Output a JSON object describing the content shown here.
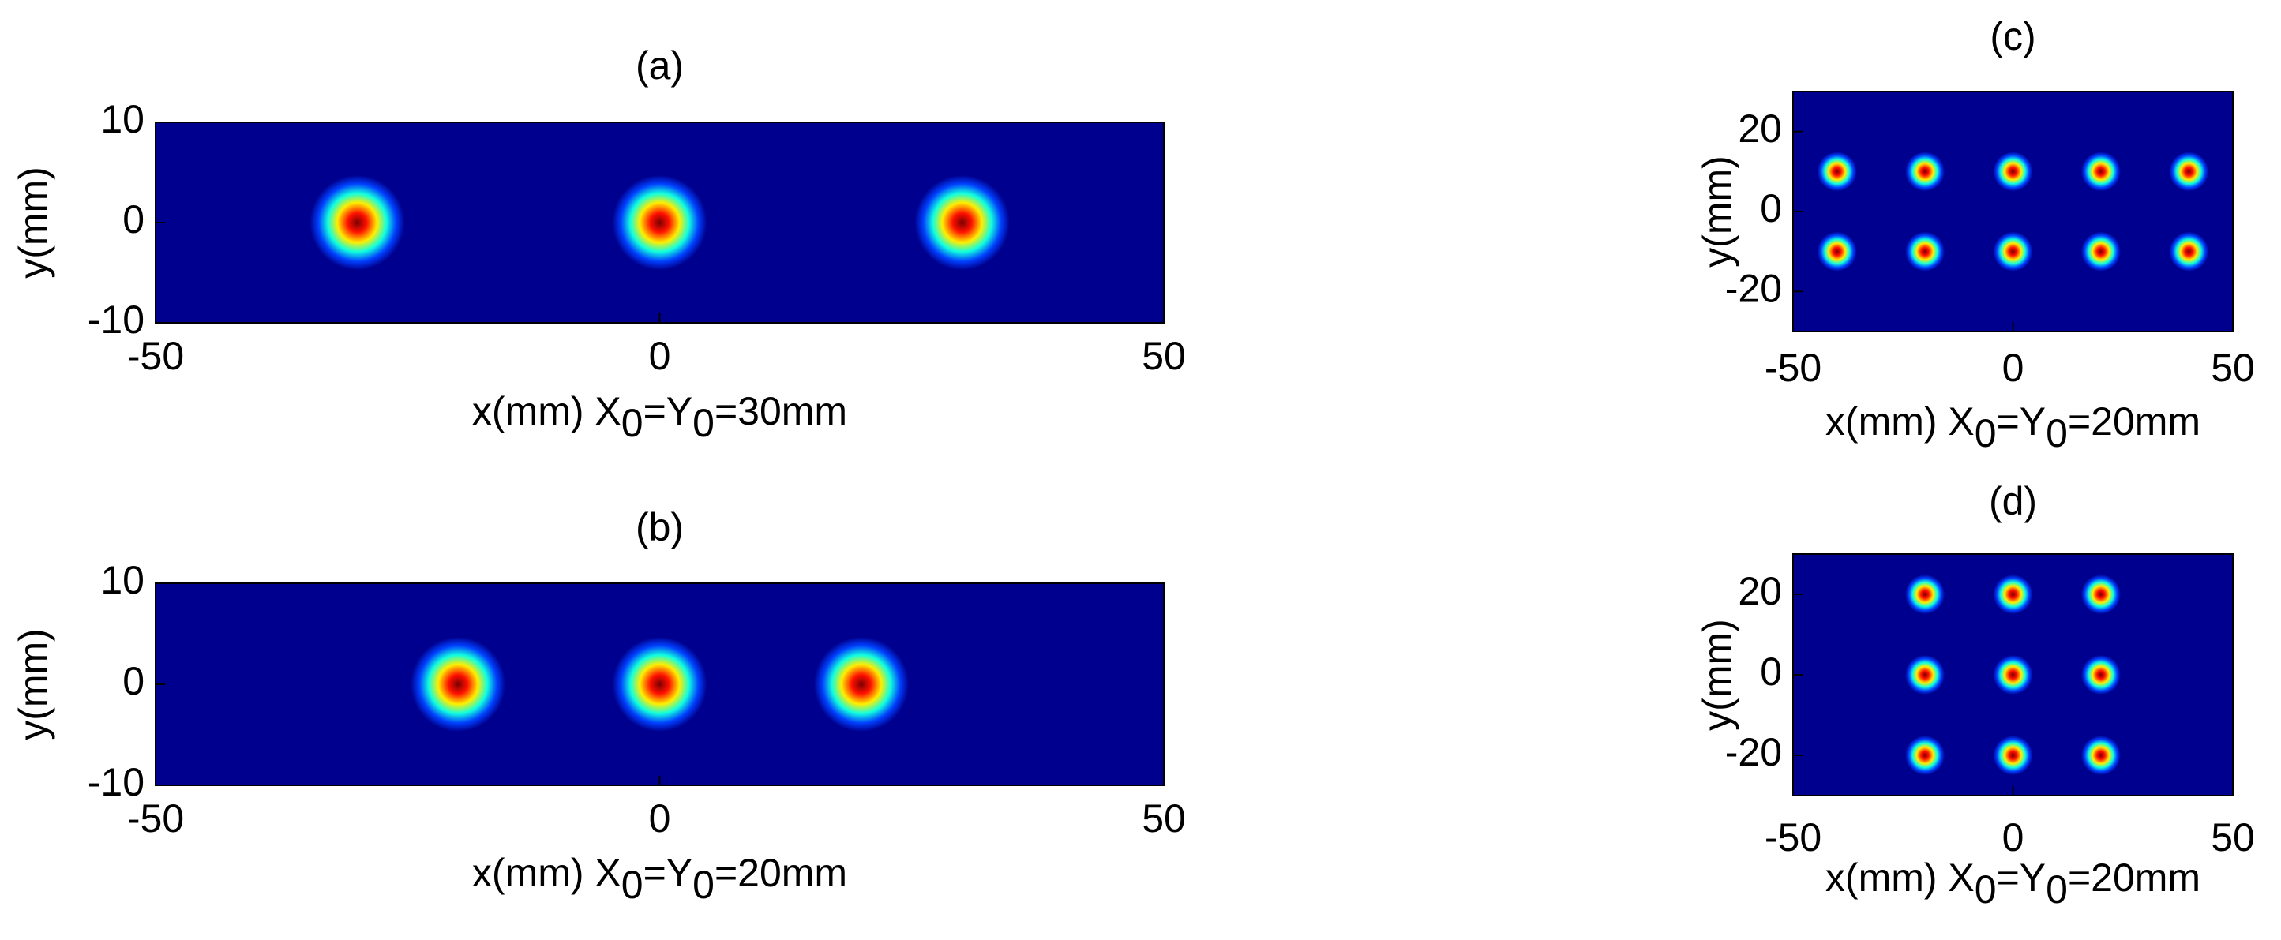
{
  "chart_data": [
    {
      "type": "scatter",
      "title": "(a)",
      "ylabel": "y(mm)",
      "xlabel": [
        "x(mm)  X",
        "0",
        "=Y",
        "0",
        "=30mm"
      ],
      "x": [
        -30,
        0,
        30
      ],
      "y": [
        0,
        0,
        0
      ],
      "xlim": [
        -50,
        50
      ],
      "xticks": [
        -50,
        0,
        50
      ],
      "ylim": [
        -10,
        10
      ],
      "yticks": [
        -10,
        0,
        10
      ],
      "background": "#00008f"
    },
    {
      "type": "scatter",
      "title": "(b)",
      "ylabel": "y(mm)",
      "xlabel": [
        "x(mm)  X",
        "0",
        "=Y",
        "0",
        "=20mm"
      ],
      "x": [
        -20,
        0,
        20
      ],
      "y": [
        0,
        0,
        0
      ],
      "xlim": [
        -50,
        50
      ],
      "xticks": [
        -50,
        0,
        50
      ],
      "ylim": [
        -10,
        10
      ],
      "yticks": [
        -10,
        0,
        10
      ],
      "background": "#00008f"
    },
    {
      "type": "scatter",
      "title": "(c)",
      "ylabel": "y(mm)",
      "xlabel": [
        "x(mm)  X",
        "0",
        "=Y",
        "0",
        "=20mm"
      ],
      "x": [
        -40,
        -20,
        0,
        20,
        40,
        -40,
        -20,
        0,
        20,
        40
      ],
      "y": [
        10,
        10,
        10,
        10,
        10,
        -10,
        -10,
        -10,
        -10,
        -10
      ],
      "xlim": [
        -50,
        50
      ],
      "xticks": [
        -50,
        0,
        50
      ],
      "ylim": [
        -30,
        30
      ],
      "yticks": [
        -20,
        0,
        20
      ],
      "background": "#00008f"
    },
    {
      "type": "scatter",
      "title": "(d)",
      "ylabel": "y(mm)",
      "xlabel": [
        "x(mm)  X",
        "0",
        "=Y",
        "0",
        "=20mm"
      ],
      "x": [
        -20,
        0,
        20,
        -20,
        0,
        20,
        -20,
        0,
        20
      ],
      "y": [
        20,
        20,
        20,
        0,
        0,
        0,
        -20,
        -20,
        -20
      ],
      "xlim": [
        -50,
        50
      ],
      "xticks": [
        -50,
        0,
        50
      ],
      "ylim": [
        -30,
        30
      ],
      "yticks": [
        -20,
        0,
        20
      ],
      "background": "#00008f"
    }
  ]
}
